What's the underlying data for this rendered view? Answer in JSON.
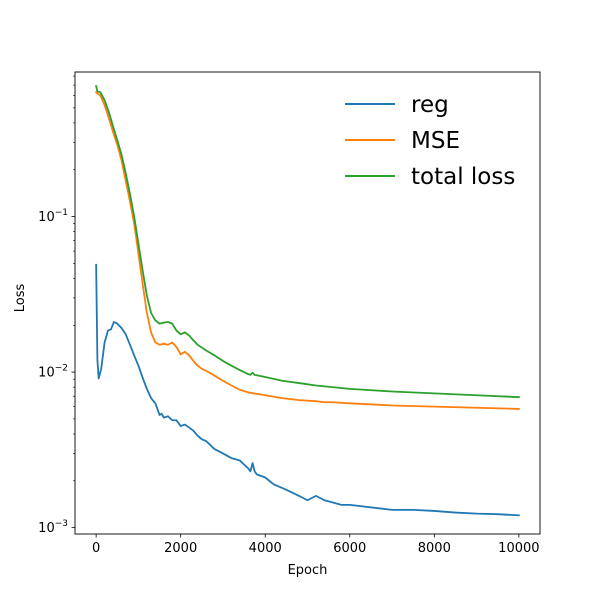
{
  "chart_data": {
    "type": "line",
    "title": "",
    "xlabel": "Epoch",
    "ylabel": "Loss",
    "xlim": [
      -500,
      10500
    ],
    "ylim": [
      0.00091,
      0.85
    ],
    "yscale": "log",
    "grid": false,
    "legend_position": "top-right",
    "x_ticks": [
      {
        "value": 0,
        "label": "0"
      },
      {
        "value": 2000,
        "label": "2000"
      },
      {
        "value": 4000,
        "label": "4000"
      },
      {
        "value": 6000,
        "label": "6000"
      },
      {
        "value": 8000,
        "label": "8000"
      },
      {
        "value": 10000,
        "label": "10000"
      }
    ],
    "y_ticks": [
      {
        "value": 0.001,
        "base": "10",
        "exp": "−3"
      },
      {
        "value": 0.01,
        "base": "10",
        "exp": "−2"
      },
      {
        "value": 0.1,
        "base": "10",
        "exp": "−1"
      }
    ],
    "series": [
      {
        "name": "reg",
        "color": "#1f77b4",
        "points": [
          [
            0,
            0.049
          ],
          [
            30,
            0.012
          ],
          [
            60,
            0.0091
          ],
          [
            120,
            0.0105
          ],
          [
            200,
            0.0155
          ],
          [
            280,
            0.0185
          ],
          [
            350,
            0.0188
          ],
          [
            420,
            0.021
          ],
          [
            500,
            0.0205
          ],
          [
            600,
            0.0192
          ],
          [
            700,
            0.0175
          ],
          [
            800,
            0.015
          ],
          [
            900,
            0.0128
          ],
          [
            1000,
            0.011
          ],
          [
            1100,
            0.0092
          ],
          [
            1200,
            0.0078
          ],
          [
            1300,
            0.0068
          ],
          [
            1400,
            0.0063
          ],
          [
            1450,
            0.0058
          ],
          [
            1500,
            0.0053
          ],
          [
            1550,
            0.0054
          ],
          [
            1600,
            0.0051
          ],
          [
            1700,
            0.0052
          ],
          [
            1800,
            0.0049
          ],
          [
            1900,
            0.0049
          ],
          [
            2000,
            0.0045
          ],
          [
            2100,
            0.0046
          ],
          [
            2200,
            0.0044
          ],
          [
            2300,
            0.0042
          ],
          [
            2400,
            0.0039
          ],
          [
            2500,
            0.0037
          ],
          [
            2600,
            0.0036
          ],
          [
            2700,
            0.0034
          ],
          [
            2800,
            0.0032
          ],
          [
            2900,
            0.0031
          ],
          [
            3000,
            0.003
          ],
          [
            3200,
            0.0028
          ],
          [
            3400,
            0.0027
          ],
          [
            3600,
            0.0024
          ],
          [
            3650,
            0.0023
          ],
          [
            3700,
            0.0026
          ],
          [
            3750,
            0.0023
          ],
          [
            3800,
            0.0022
          ],
          [
            4000,
            0.0021
          ],
          [
            4200,
            0.0019
          ],
          [
            4400,
            0.0018
          ],
          [
            4600,
            0.0017
          ],
          [
            4800,
            0.0016
          ],
          [
            5000,
            0.0015
          ],
          [
            5200,
            0.0016
          ],
          [
            5400,
            0.0015
          ],
          [
            5600,
            0.00145
          ],
          [
            5800,
            0.0014
          ],
          [
            6000,
            0.0014
          ],
          [
            6500,
            0.00135
          ],
          [
            7000,
            0.0013
          ],
          [
            7500,
            0.0013
          ],
          [
            8000,
            0.00128
          ],
          [
            8500,
            0.00125
          ],
          [
            9000,
            0.00123
          ],
          [
            9500,
            0.00122
          ],
          [
            10000,
            0.0012
          ]
        ]
      },
      {
        "name": "MSE",
        "color": "#ff7f0e",
        "points": [
          [
            0,
            0.63
          ],
          [
            100,
            0.6
          ],
          [
            200,
            0.52
          ],
          [
            300,
            0.43
          ],
          [
            400,
            0.35
          ],
          [
            500,
            0.29
          ],
          [
            600,
            0.23
          ],
          [
            700,
            0.17
          ],
          [
            800,
            0.125
          ],
          [
            900,
            0.09
          ],
          [
            1000,
            0.058
          ],
          [
            1100,
            0.037
          ],
          [
            1200,
            0.024
          ],
          [
            1300,
            0.018
          ],
          [
            1400,
            0.0155
          ],
          [
            1500,
            0.015
          ],
          [
            1600,
            0.0152
          ],
          [
            1700,
            0.015
          ],
          [
            1800,
            0.0155
          ],
          [
            1900,
            0.0145
          ],
          [
            2000,
            0.013
          ],
          [
            2100,
            0.0135
          ],
          [
            2200,
            0.0128
          ],
          [
            2300,
            0.0118
          ],
          [
            2400,
            0.011
          ],
          [
            2500,
            0.0105
          ],
          [
            2600,
            0.0102
          ],
          [
            2800,
            0.0095
          ],
          [
            3000,
            0.0088
          ],
          [
            3200,
            0.0082
          ],
          [
            3400,
            0.0077
          ],
          [
            3600,
            0.0074
          ],
          [
            4000,
            0.0071
          ],
          [
            4400,
            0.0068
          ],
          [
            4800,
            0.0066
          ],
          [
            5200,
            0.0065
          ],
          [
            5400,
            0.0064
          ],
          [
            5600,
            0.0064
          ],
          [
            6000,
            0.0063
          ],
          [
            7000,
            0.0061
          ],
          [
            8000,
            0.006
          ],
          [
            9000,
            0.0059
          ],
          [
            10000,
            0.0058
          ]
        ]
      },
      {
        "name": "total loss",
        "color": "#2ca02c",
        "points": [
          [
            0,
            0.69
          ],
          [
            30,
            0.64
          ],
          [
            100,
            0.63
          ],
          [
            200,
            0.56
          ],
          [
            300,
            0.47
          ],
          [
            400,
            0.38
          ],
          [
            500,
            0.31
          ],
          [
            600,
            0.25
          ],
          [
            700,
            0.19
          ],
          [
            800,
            0.14
          ],
          [
            900,
            0.1
          ],
          [
            1000,
            0.067
          ],
          [
            1100,
            0.045
          ],
          [
            1200,
            0.031
          ],
          [
            1300,
            0.024
          ],
          [
            1400,
            0.0215
          ],
          [
            1500,
            0.0205
          ],
          [
            1600,
            0.0208
          ],
          [
            1700,
            0.021
          ],
          [
            1800,
            0.0205
          ],
          [
            1900,
            0.0185
          ],
          [
            2000,
            0.0175
          ],
          [
            2100,
            0.018
          ],
          [
            2200,
            0.0172
          ],
          [
            2300,
            0.016
          ],
          [
            2400,
            0.015
          ],
          [
            2600,
            0.0138
          ],
          [
            2800,
            0.0128
          ],
          [
            3000,
            0.0118
          ],
          [
            3200,
            0.011
          ],
          [
            3400,
            0.0103
          ],
          [
            3600,
            0.0097
          ],
          [
            3650,
            0.0096
          ],
          [
            3700,
            0.0099
          ],
          [
            3750,
            0.0096
          ],
          [
            4000,
            0.0093
          ],
          [
            4400,
            0.0088
          ],
          [
            4800,
            0.0085
          ],
          [
            5200,
            0.0082
          ],
          [
            6000,
            0.0078
          ],
          [
            7000,
            0.0075
          ],
          [
            8000,
            0.0073
          ],
          [
            9000,
            0.0071
          ],
          [
            10000,
            0.0069
          ]
        ]
      }
    ]
  }
}
